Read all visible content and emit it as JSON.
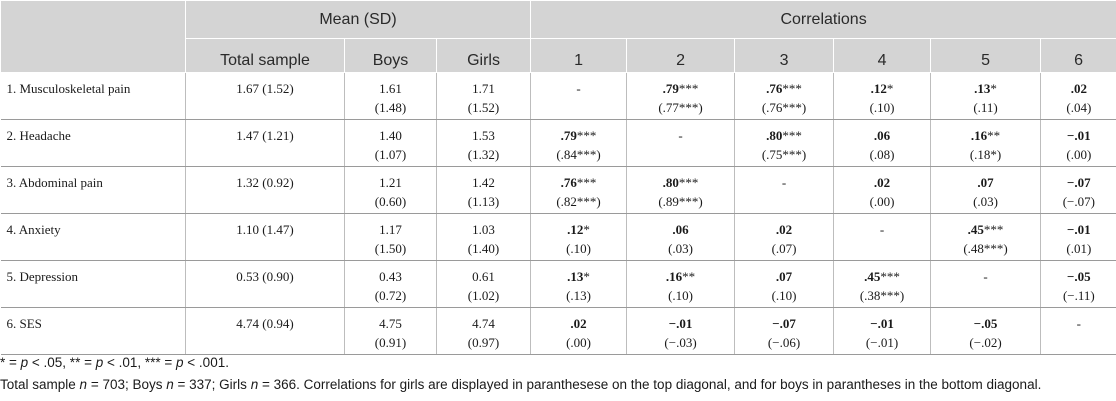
{
  "header": {
    "group_mean": "Mean (SD)",
    "group_corr": "Correlations",
    "columns": [
      "Total sample",
      "Boys",
      "Girls",
      "1",
      "2",
      "3",
      "4",
      "5",
      "6"
    ]
  },
  "rows": [
    {
      "label": "1. Musculoskeletal pain",
      "total": "1.67 (1.52)",
      "boys_mean": "1.61",
      "boys_sd": "(1.48)",
      "girls_mean": "1.71",
      "girls_sd": "(1.52)",
      "corr": [
        {
          "main": "-",
          "stars": "",
          "sub": ""
        },
        {
          "main": ".79",
          "stars": "***",
          "sub": "(.77***)"
        },
        {
          "main": ".76",
          "stars": "***",
          "sub": "(.76***)"
        },
        {
          "main": ".12",
          "stars": "*",
          "sub": "(.10)"
        },
        {
          "main": ".13",
          "stars": "*",
          "sub": "(.11)"
        },
        {
          "main": ".02",
          "stars": "",
          "sub": "(.04)"
        }
      ]
    },
    {
      "label": "2. Headache",
      "total": "1.47 (1.21)",
      "boys_mean": "1.40",
      "boys_sd": "(1.07)",
      "girls_mean": "1.53",
      "girls_sd": "(1.32)",
      "corr": [
        {
          "main": ".79",
          "stars": "***",
          "sub": "(.84***)"
        },
        {
          "main": "-",
          "stars": "",
          "sub": ""
        },
        {
          "main": ".80",
          "stars": "***",
          "sub": "(.75***)"
        },
        {
          "main": ".06",
          "stars": "",
          "sub": "(.08)"
        },
        {
          "main": ".16",
          "stars": "**",
          "sub": "(.18*)"
        },
        {
          "main": "−.01",
          "stars": "",
          "sub": "(.00)"
        }
      ]
    },
    {
      "label": "3. Abdominal pain",
      "total": "1.32 (0.92)",
      "boys_mean": "1.21",
      "boys_sd": "(0.60)",
      "girls_mean": "1.42",
      "girls_sd": "(1.13)",
      "corr": [
        {
          "main": ".76",
          "stars": "***",
          "sub": "(.82***)"
        },
        {
          "main": ".80",
          "stars": "***",
          "sub": "(.89***)"
        },
        {
          "main": "-",
          "stars": "",
          "sub": ""
        },
        {
          "main": ".02",
          "stars": "",
          "sub": "(.00)"
        },
        {
          "main": ".07",
          "stars": "",
          "sub": "(.03)"
        },
        {
          "main": "−.07",
          "stars": "",
          "sub": "(−.07)"
        }
      ]
    },
    {
      "label": "4. Anxiety",
      "total": "1.10 (1.47)",
      "boys_mean": "1.17",
      "boys_sd": "(1.50)",
      "girls_mean": "1.03",
      "girls_sd": "(1.40)",
      "corr": [
        {
          "main": ".12",
          "stars": "*",
          "sub": "(.10)"
        },
        {
          "main": ".06",
          "stars": "",
          "sub": "(.03)"
        },
        {
          "main": ".02",
          "stars": "",
          "sub": "(.07)"
        },
        {
          "main": "-",
          "stars": "",
          "sub": ""
        },
        {
          "main": ".45",
          "stars": "***",
          "sub": "(.48***)"
        },
        {
          "main": "−.01",
          "stars": "",
          "sub": "(.01)"
        }
      ]
    },
    {
      "label": "5. Depression",
      "total": "0.53 (0.90)",
      "boys_mean": "0.43",
      "boys_sd": "(0.72)",
      "girls_mean": "0.61",
      "girls_sd": "(1.02)",
      "corr": [
        {
          "main": ".13",
          "stars": "*",
          "sub": "(.13)"
        },
        {
          "main": ".16",
          "stars": "**",
          "sub": "(.10)"
        },
        {
          "main": ".07",
          "stars": "",
          "sub": "(.10)"
        },
        {
          "main": ".45",
          "stars": "***",
          "sub": "(.38***)"
        },
        {
          "main": "-",
          "stars": "",
          "sub": ""
        },
        {
          "main": "−.05",
          "stars": "",
          "sub": "(−.11)"
        }
      ]
    },
    {
      "label": "6. SES",
      "total": "4.74 (0.94)",
      "boys_mean": "4.75",
      "boys_sd": "(0.91)",
      "girls_mean": "4.74",
      "girls_sd": "(0.97)",
      "corr": [
        {
          "main": ".02",
          "stars": "",
          "sub": "(.00)"
        },
        {
          "main": "−.01",
          "stars": "",
          "sub": "(−.03)"
        },
        {
          "main": "−.07",
          "stars": "",
          "sub": "(−.06)"
        },
        {
          "main": "−.01",
          "stars": "",
          "sub": "(−.01)"
        },
        {
          "main": "−.05",
          "stars": "",
          "sub": "(−.02)"
        },
        {
          "main": "-",
          "stars": "",
          "sub": ""
        }
      ]
    }
  ],
  "notes": {
    "sig": {
      "s1": "* = ",
      "p1": "p",
      "t1": " < .05, ** = ",
      "p2": "p",
      "t2": " < .01, *** = ",
      "p3": "p",
      "t3": " < .001."
    },
    "sample": {
      "a": "Total sample ",
      "n1": "n",
      "b": " = 703; Boys ",
      "n2": "n",
      "c": " = 337; Girls ",
      "n3": "n",
      "d": " = 366. Correlations for girls are displayed in paranthesese on the top diagonal, and for boys in parantheses in the bottom diagonal."
    }
  }
}
